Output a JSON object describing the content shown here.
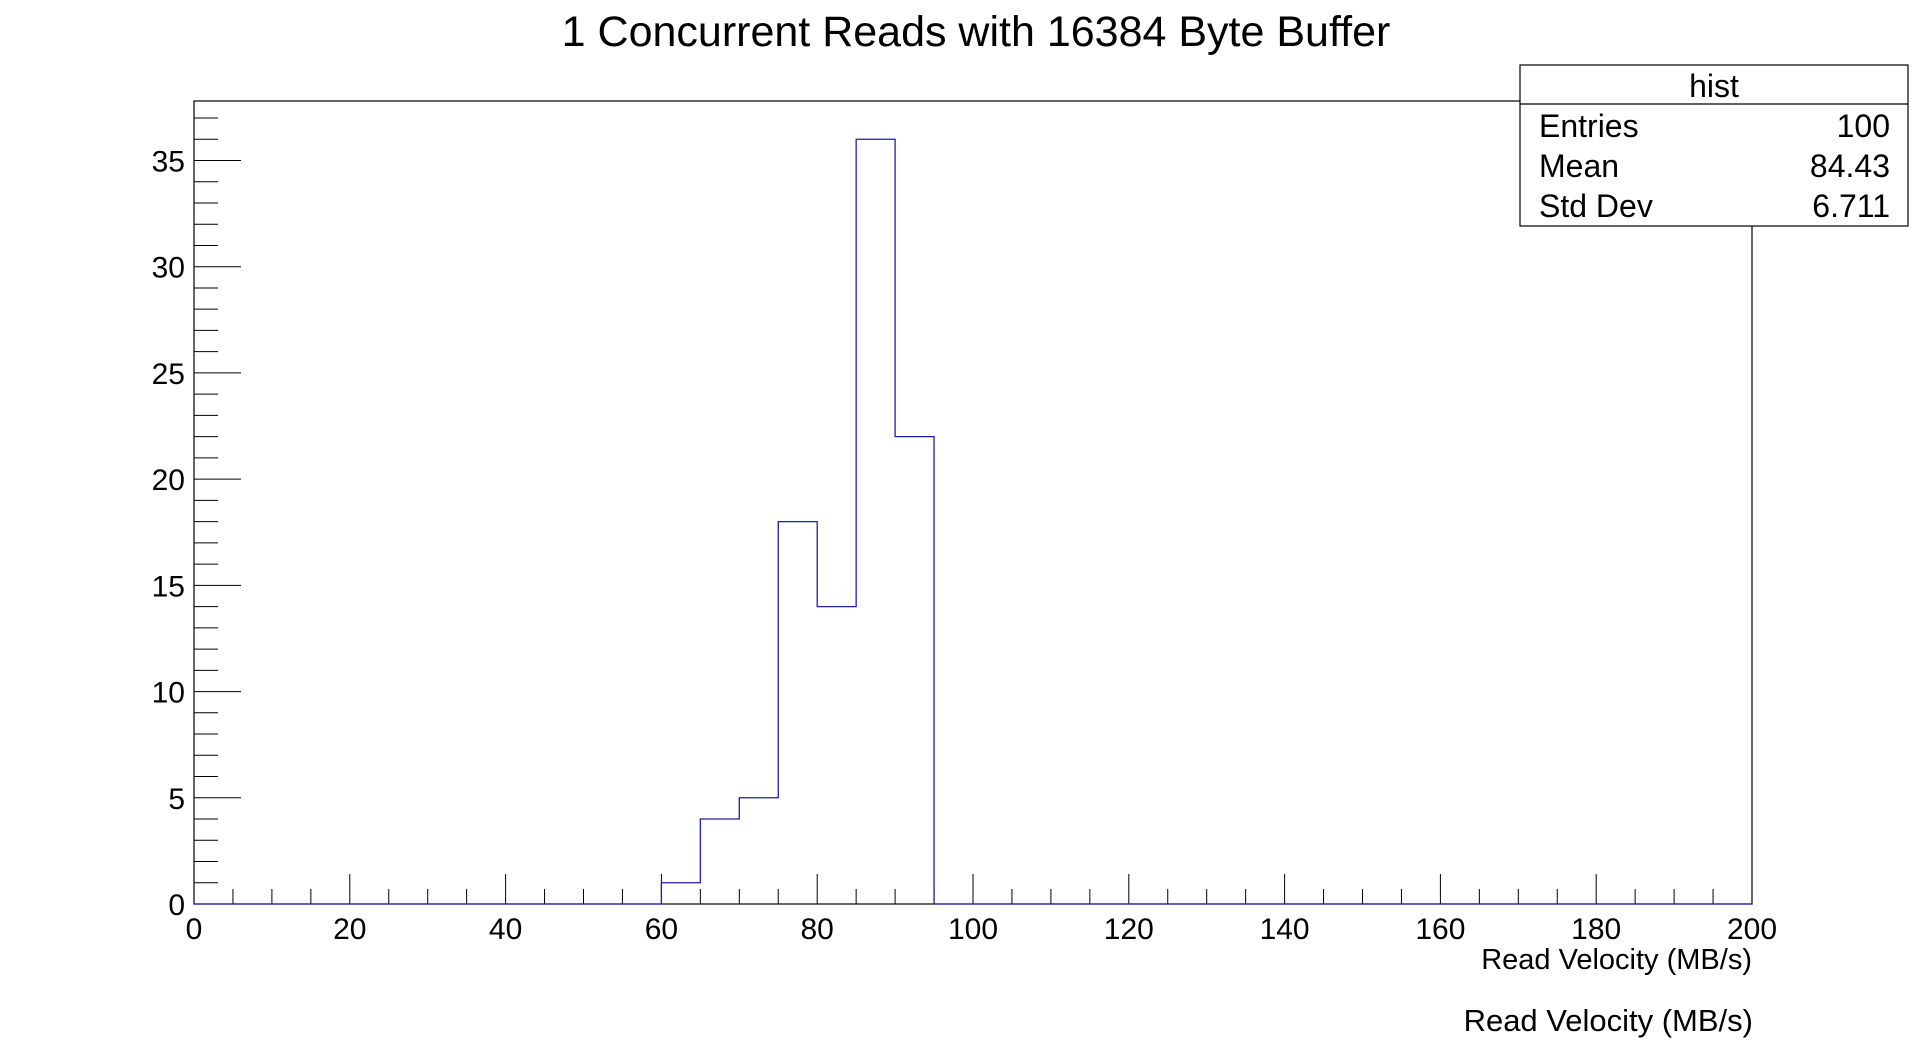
{
  "chart_data": {
    "type": "bar",
    "title": "1 Concurrent Reads with 16384 Byte Buffer",
    "xlabel": "Read Velocity (MB/s)",
    "footer_label": "Read Velocity (MB/s)",
    "ylabel": "",
    "xlim": [
      0,
      200
    ],
    "ylim": [
      0,
      37.8
    ],
    "bin_width": 5,
    "x_ticks": [
      0,
      20,
      40,
      60,
      80,
      100,
      120,
      140,
      160,
      180,
      200
    ],
    "y_ticks": [
      0,
      5,
      10,
      15,
      20,
      25,
      30,
      35
    ],
    "bins": [
      {
        "x_low": 60,
        "x_high": 65,
        "count": 1
      },
      {
        "x_low": 65,
        "x_high": 70,
        "count": 4
      },
      {
        "x_low": 70,
        "x_high": 75,
        "count": 5
      },
      {
        "x_low": 75,
        "x_high": 80,
        "count": 18
      },
      {
        "x_low": 80,
        "x_high": 85,
        "count": 14
      },
      {
        "x_low": 85,
        "x_high": 90,
        "count": 36
      },
      {
        "x_low": 90,
        "x_high": 95,
        "count": 22
      }
    ],
    "line_color": "#1f1fa8",
    "grid": false,
    "stats_box": {
      "title": "hist",
      "position": "top-right",
      "rows": [
        {
          "label": "Entries",
          "value": "100"
        },
        {
          "label": "Mean",
          "value": "84.43"
        },
        {
          "label": "Std Dev",
          "value": "6.711"
        }
      ]
    }
  }
}
